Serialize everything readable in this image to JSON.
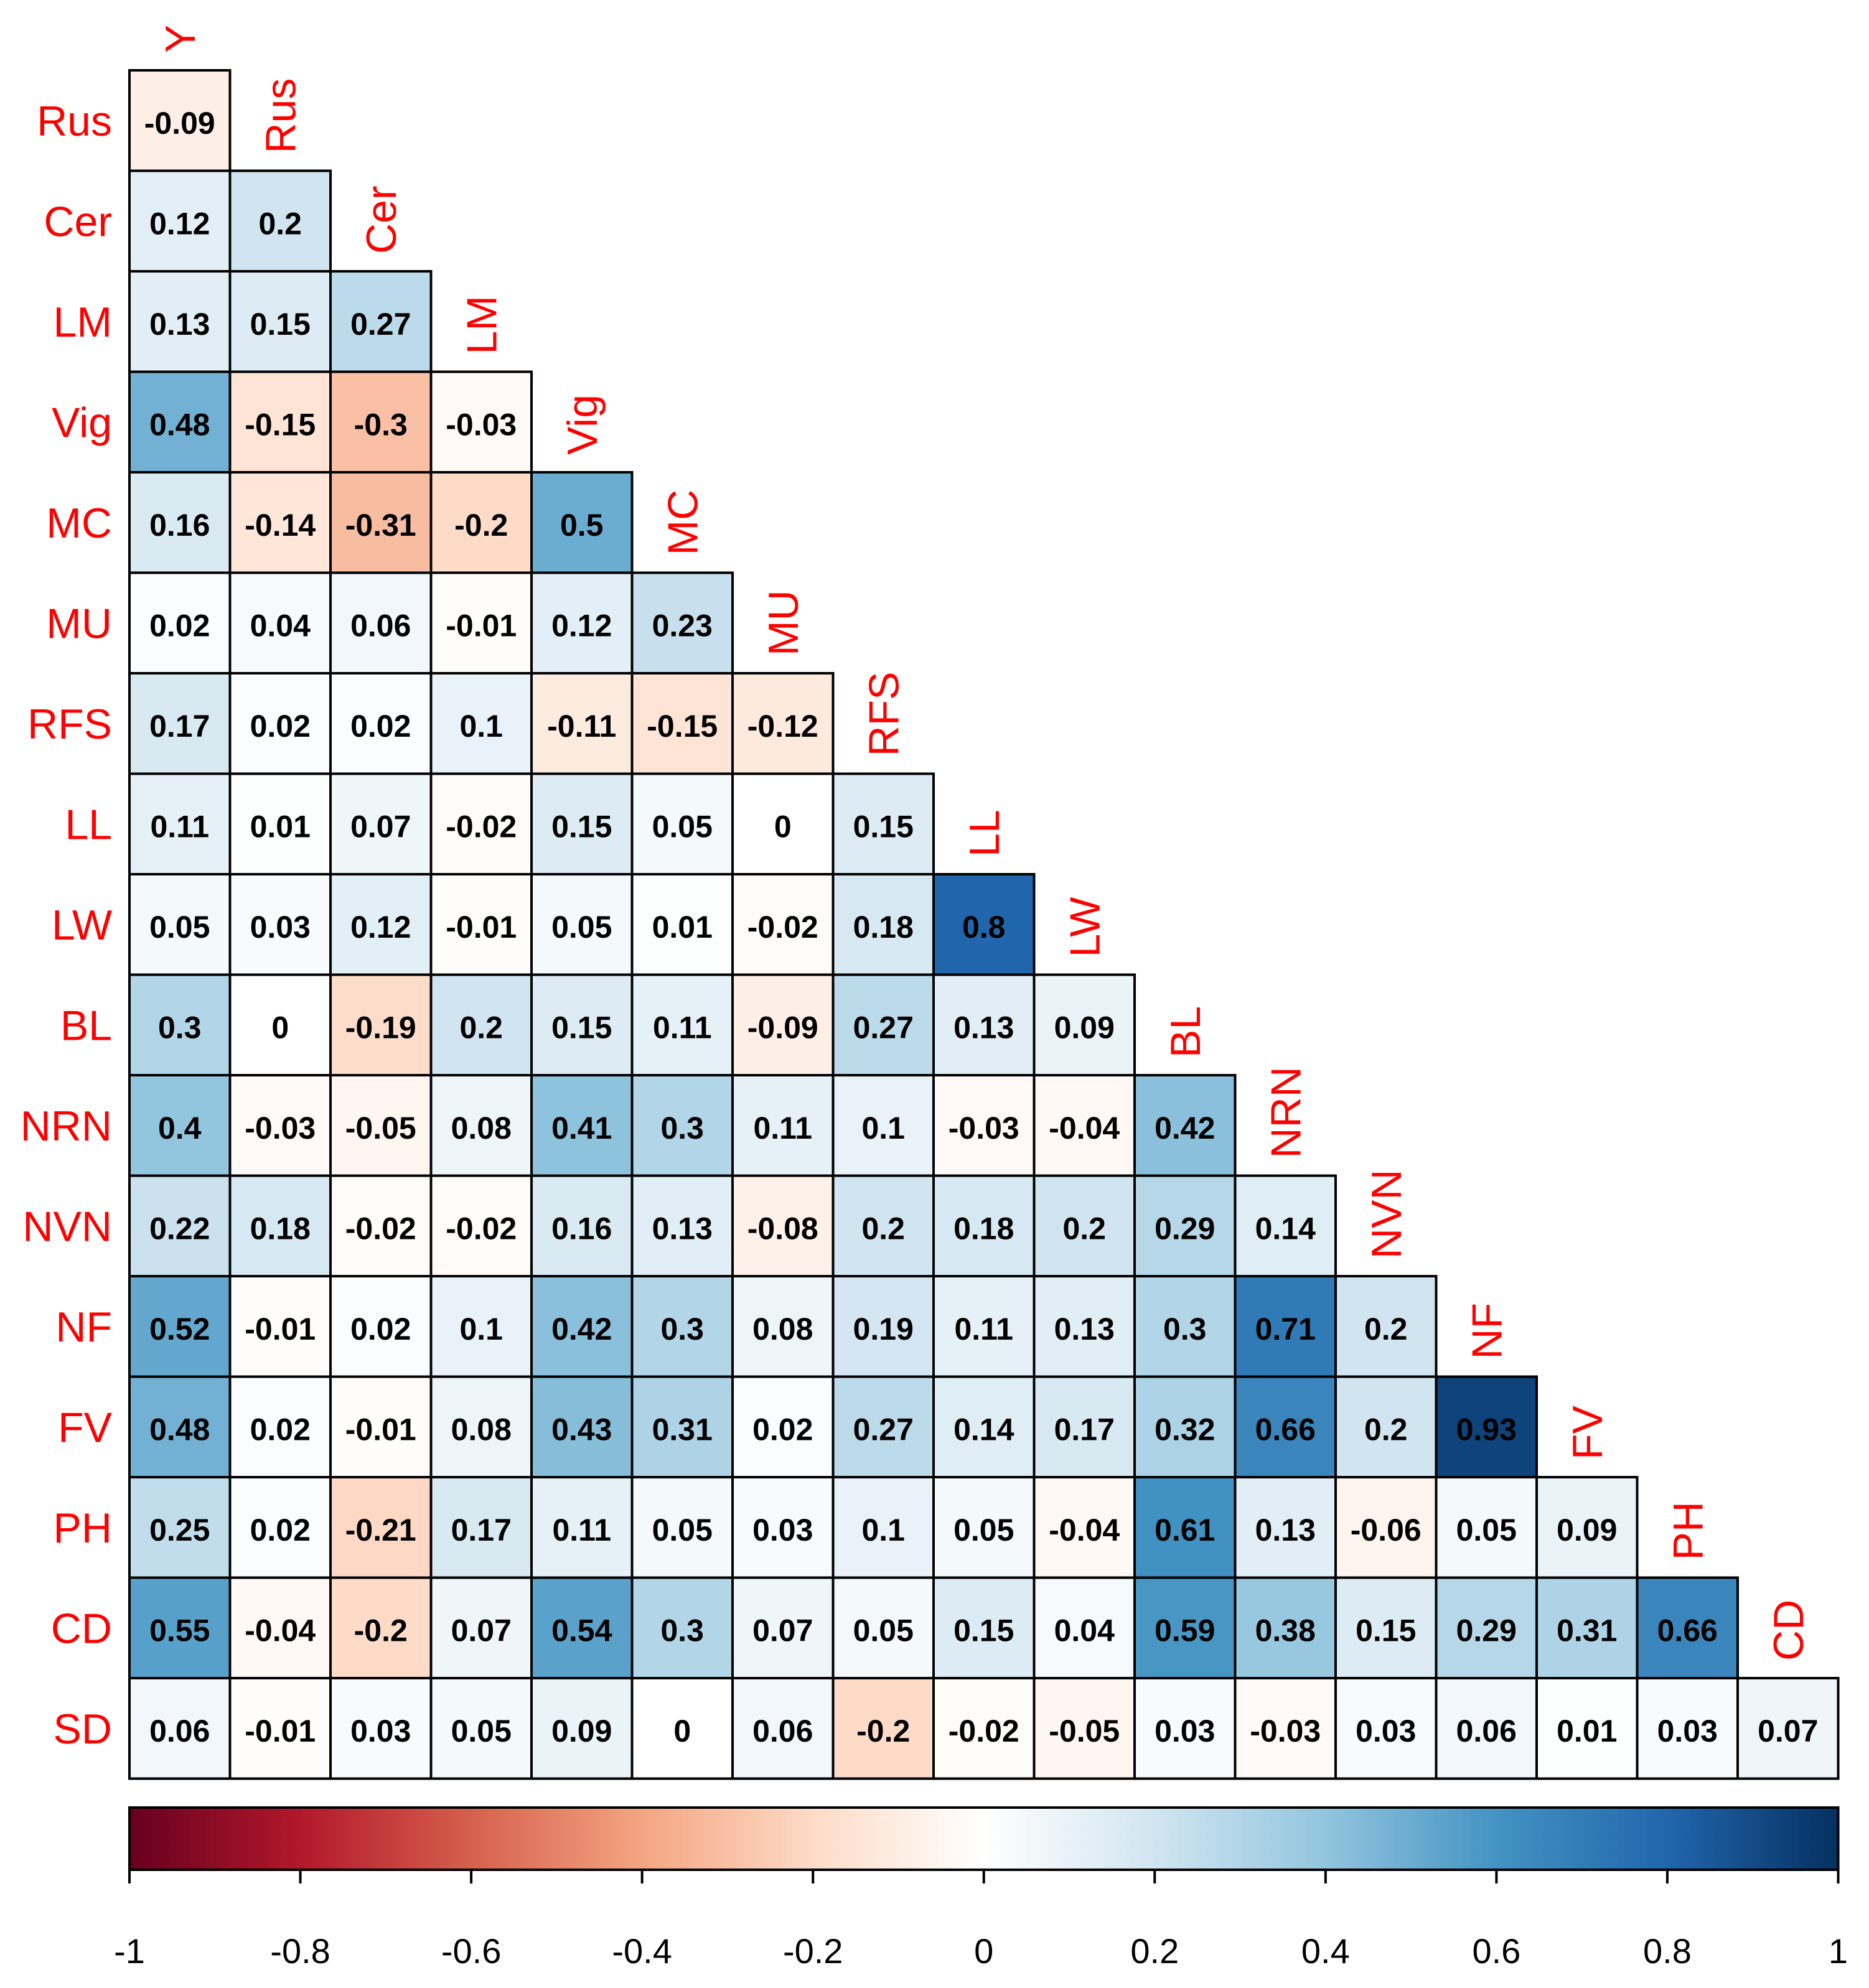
{
  "chart_data": {
    "type": "heatmap",
    "title": "",
    "variables": [
      "Y",
      "Rus",
      "Cer",
      "LM",
      "Vig",
      "MC",
      "MU",
      "RFS",
      "LL",
      "LW",
      "BL",
      "NRN",
      "NVN",
      "NF",
      "FV",
      "PH",
      "CD",
      "SD"
    ],
    "matrix_lower": [
      [
        -0.09
      ],
      [
        0.12,
        0.2
      ],
      [
        0.13,
        0.15,
        0.27
      ],
      [
        0.48,
        -0.15,
        -0.3,
        -0.03
      ],
      [
        0.16,
        -0.14,
        -0.31,
        -0.2,
        0.5
      ],
      [
        0.02,
        0.04,
        0.06,
        -0.01,
        0.12,
        0.23
      ],
      [
        0.17,
        0.02,
        0.02,
        0.1,
        -0.11,
        -0.15,
        -0.12
      ],
      [
        0.11,
        0.01,
        0.07,
        -0.02,
        0.15,
        0.05,
        0,
        0.15
      ],
      [
        0.05,
        0.03,
        0.12,
        -0.01,
        0.05,
        0.01,
        -0.02,
        0.18,
        0.8
      ],
      [
        0.3,
        0,
        -0.19,
        0.2,
        0.15,
        0.11,
        -0.09,
        0.27,
        0.13,
        0.09
      ],
      [
        0.4,
        -0.03,
        -0.05,
        0.08,
        0.41,
        0.3,
        0.11,
        0.1,
        -0.03,
        -0.04,
        0.42
      ],
      [
        0.22,
        0.18,
        -0.02,
        -0.02,
        0.16,
        0.13,
        -0.08,
        0.2,
        0.18,
        0.2,
        0.29,
        0.14
      ],
      [
        0.52,
        -0.01,
        0.02,
        0.1,
        0.42,
        0.3,
        0.08,
        0.19,
        0.11,
        0.13,
        0.3,
        0.71,
        0.2
      ],
      [
        0.48,
        0.02,
        -0.01,
        0.08,
        0.43,
        0.31,
        0.02,
        0.27,
        0.14,
        0.17,
        0.32,
        0.66,
        0.2,
        0.93
      ],
      [
        0.25,
        0.02,
        -0.21,
        0.17,
        0.11,
        0.05,
        0.03,
        0.1,
        0.05,
        -0.04,
        0.61,
        0.13,
        -0.06,
        0.05,
        0.09
      ],
      [
        0.55,
        -0.04,
        -0.2,
        0.07,
        0.54,
        0.3,
        0.07,
        0.05,
        0.15,
        0.04,
        0.59,
        0.38,
        0.15,
        0.29,
        0.31,
        0.66
      ],
      [
        0.06,
        -0.01,
        0.03,
        0.05,
        0.09,
        0,
        0.06,
        -0.2,
        -0.02,
        -0.05,
        0.03,
        -0.03,
        0.03,
        0.06,
        0.01,
        0.03,
        0.07
      ]
    ],
    "colorbar": {
      "range": [
        -1,
        1
      ],
      "ticks": [
        -1,
        -0.8,
        -0.6,
        -0.4,
        -0.2,
        0,
        0.2,
        0.4,
        0.6,
        0.8,
        1
      ],
      "tick_labels": [
        "-1",
        "-0.8",
        "-0.6",
        "-0.4",
        "-0.2",
        "0",
        "0.2",
        "0.4",
        "0.6",
        "0.8",
        "1"
      ],
      "colors": [
        "#67001f",
        "#b2182b",
        "#d6604d",
        "#f4a582",
        "#fddbc7",
        "#ffffff",
        "#d1e5f0",
        "#92c5de",
        "#4393c3",
        "#2166ac",
        "#053061"
      ]
    },
    "label_color": "#ff0000",
    "grid": true
  }
}
